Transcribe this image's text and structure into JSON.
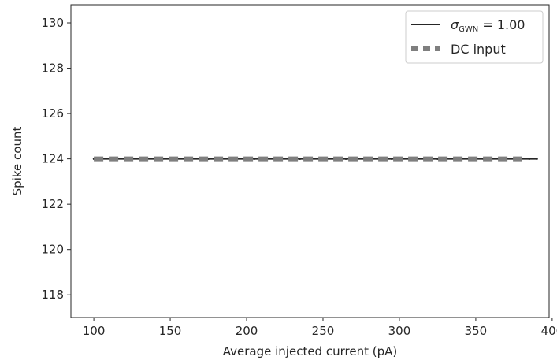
{
  "chart_data": {
    "type": "line",
    "xlabel": "Average injected current (pA)",
    "ylabel": "Spike count",
    "xlim": [
      85,
      398
    ],
    "ylim": [
      117,
      130.8
    ],
    "xticks": [
      100,
      150,
      200,
      250,
      300,
      350,
      400
    ],
    "yticks": [
      118,
      120,
      122,
      124,
      126,
      128,
      130
    ],
    "grid": false,
    "legend_position": "top-right",
    "series": [
      {
        "name": "σGWN = 1.00",
        "legend_symbol": "σ",
        "legend_subscript": "GWN",
        "legend_suffix": " = 1.00",
        "style": "solid",
        "color": "#262626",
        "x": [
          100,
          115,
          130,
          145,
          160,
          175,
          190,
          205,
          220,
          235,
          250,
          265,
          280,
          295,
          310,
          325,
          340,
          355,
          370,
          385,
          390
        ],
        "y": [
          124,
          124,
          124,
          124,
          124,
          124,
          124,
          124,
          124,
          124,
          124,
          124,
          124,
          124,
          124,
          124,
          124,
          124,
          124,
          124,
          124
        ]
      },
      {
        "name": "DC input",
        "style": "dashed",
        "color": "#7f7f7f",
        "x": [
          100,
          115,
          130,
          145,
          160,
          175,
          190,
          205,
          220,
          235,
          250,
          265,
          280,
          295,
          310,
          325,
          340,
          355,
          370,
          380
        ],
        "y": [
          124,
          124,
          124,
          124,
          124,
          124,
          124,
          124,
          124,
          124,
          124,
          124,
          124,
          124,
          124,
          124,
          124,
          124,
          124,
          124
        ]
      }
    ]
  }
}
